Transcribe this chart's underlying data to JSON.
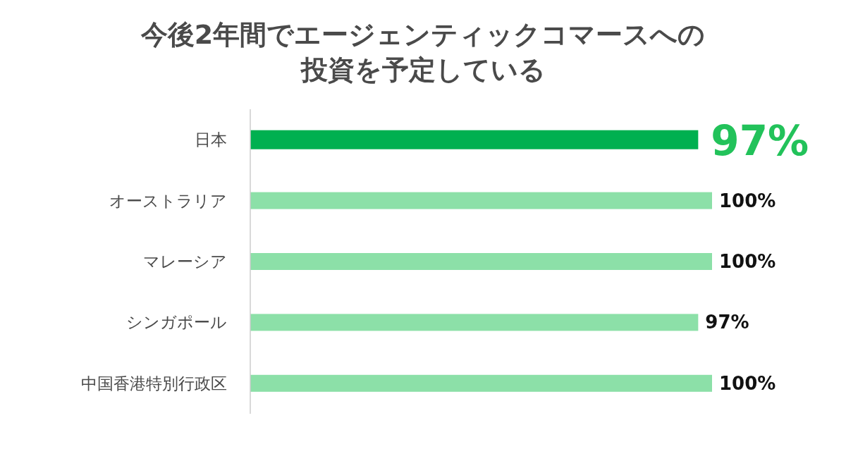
{
  "chart_data": {
    "type": "bar",
    "orientation": "horizontal",
    "title": "今後2年間でエージェンティックコマースへの投資を予定している",
    "categories": [
      "日本",
      "オーストラリア",
      "マレーシア",
      "シンガポール",
      "中国香港特別行政区"
    ],
    "values": [
      97,
      100,
      100,
      97,
      100
    ],
    "colors": [
      "#00b050",
      "#8ce0a8",
      "#8ce0a8",
      "#8ce0a8",
      "#8ce0a8"
    ],
    "value_labels": [
      "97%",
      "100%",
      "100%",
      "97%",
      "100%"
    ]
  }
}
